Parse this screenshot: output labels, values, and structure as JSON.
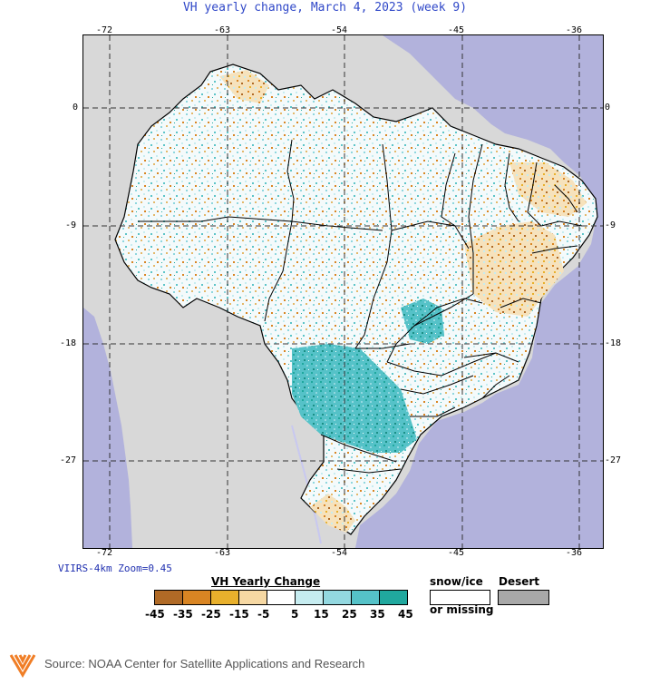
{
  "title": "VH yearly change, March 4, 2023 (week 9)",
  "longitudes": [
    "-72",
    "-63",
    "-54",
    "-45",
    "-36"
  ],
  "latitudes": [
    "0",
    "-9",
    "-18",
    "-27"
  ],
  "zoom_label": "VIIRS-4km Zoom=0.45",
  "legend": {
    "title": "VH Yearly Change",
    "labels": [
      "-45",
      "-35",
      "-25",
      "-15",
      "-5",
      "5",
      "15",
      "25",
      "35",
      "45"
    ],
    "colors": [
      "#b06a26",
      "#d98523",
      "#e8b02c",
      "#f6d8a3",
      "#ffffff",
      "#c6ecf0",
      "#93d8e0",
      "#55c2c8",
      "#20a89e"
    ],
    "snow_title": "snow/ice",
    "snow_sub": "or missing",
    "desert_title": "Desert",
    "snow_color": "#ffffff",
    "desert_color": "#a8a8a8"
  },
  "map_colors": {
    "ocean": "#b2b2dc",
    "land": "#d8d8d8",
    "rivers": "#c8c8f0"
  },
  "source": "Source: NOAA Center for Satellite Applications and Research"
}
